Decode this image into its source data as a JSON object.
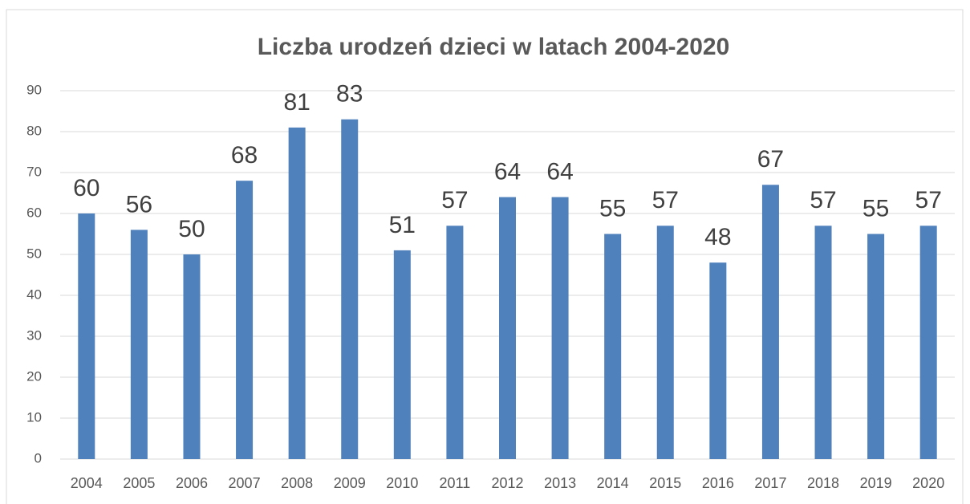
{
  "chart_data": {
    "type": "bar",
    "title": "Liczba urodzeń dzieci w latach 2004-2020",
    "categories": [
      "2004",
      "2005",
      "2006",
      "2007",
      "2008",
      "2009",
      "2010",
      "2011",
      "2012",
      "2013",
      "2014",
      "2015",
      "2016",
      "2017",
      "2018",
      "2019",
      "2020"
    ],
    "values": [
      60,
      56,
      50,
      68,
      81,
      83,
      51,
      57,
      64,
      64,
      55,
      57,
      48,
      67,
      57,
      55,
      57
    ],
    "color": "#4f81bd",
    "ylim": [
      0,
      90
    ],
    "yticks": [
      0,
      10,
      20,
      30,
      40,
      50,
      60,
      70,
      80,
      90
    ],
    "grid": true,
    "data_labels": true
  }
}
